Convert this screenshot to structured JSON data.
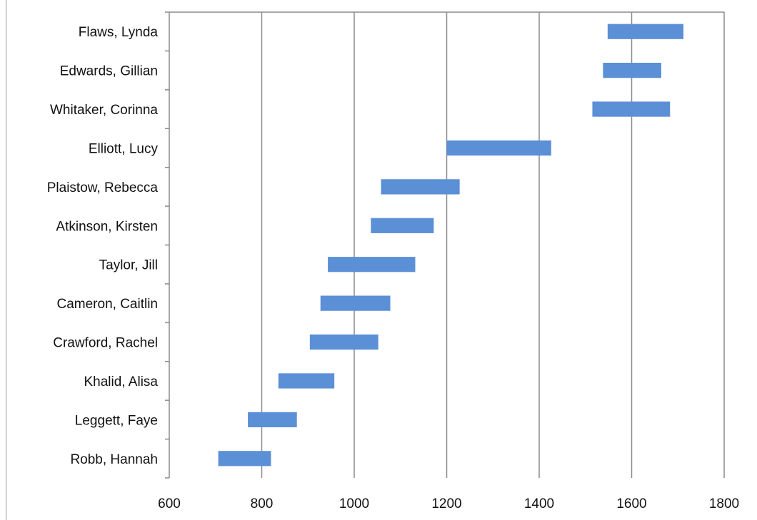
{
  "chart_data": {
    "type": "bar",
    "orientation": "horizontal",
    "style": "floating",
    "categories": [
      "Flaws, Lynda",
      "Edwards, Gillian",
      "Whitaker, Corinna",
      "Elliott, Lucy",
      "Plaistow, Rebecca",
      "Atkinson, Kirsten",
      "Taylor, Jill",
      "Cameron, Caitlin",
      "Crawford, Rachel",
      "Khalid, Alisa",
      "Leggett, Faye",
      "Robb, Hannah"
    ],
    "ranges": [
      [
        1548,
        1712
      ],
      [
        1538,
        1664
      ],
      [
        1515,
        1683
      ],
      [
        1200,
        1426
      ],
      [
        1058,
        1228
      ],
      [
        1036,
        1172
      ],
      [
        943,
        1132
      ],
      [
        927,
        1078
      ],
      [
        904,
        1052
      ],
      [
        836,
        957
      ],
      [
        770,
        876
      ],
      [
        706,
        820
      ]
    ],
    "xlim": [
      600,
      1800
    ],
    "xticks": [
      "600",
      "800",
      "1000",
      "1200",
      "1400",
      "1600",
      "1800"
    ],
    "grid": "vertical",
    "bar_color": "#5b8fd6",
    "grid_color": "#8c8c8c",
    "title": "",
    "xlabel": "",
    "ylabel": ""
  }
}
